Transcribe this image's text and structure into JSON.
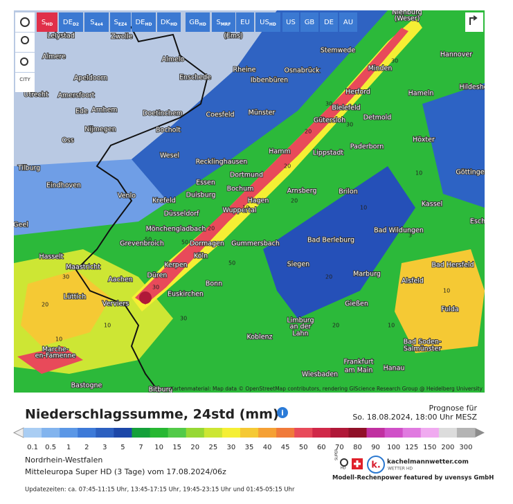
{
  "toolbar": {
    "buttons": [
      {
        "main": "S",
        "sub": "HD"
      },
      {
        "main": "DE",
        "sub": "D2"
      },
      {
        "main": "S",
        "sub": "4x4"
      },
      {
        "main": "S",
        "sub": "EZ4"
      },
      {
        "main": "DE",
        "sub": "HD"
      },
      {
        "main": "DK",
        "sub": "HD"
      },
      {
        "main": "GB",
        "sub": "HD"
      },
      {
        "main": "S",
        "sub": "MRF"
      },
      {
        "main": "EU"
      },
      {
        "main": "US",
        "sub": "HD"
      },
      {
        "main": "US"
      },
      {
        "main": "GB"
      },
      {
        "main": "DE"
      },
      {
        "main": "AU"
      }
    ],
    "city_button": "CITY"
  },
  "map": {
    "cities": [
      "Lelystad",
      "Zwolle",
      "(Ems)",
      "Nienburg",
      "(Weser)",
      "Stemwede",
      "Hannover",
      "Almere",
      "Almelo",
      "Rheine",
      "Osnabrück",
      "Minden",
      "Apeldoorn",
      "Enschede",
      "Ibbenbüren",
      "Hildesheim",
      "Amersfoort",
      "Herford",
      "Hameln",
      "Utrecht",
      "Arnhem",
      "Doetinchem",
      "Coesfeld",
      "Münster",
      "Bielefeld",
      "Ede",
      "Gütersloh",
      "Detmold",
      "Nijmegen",
      "Bocholt",
      "Oss",
      "Höxter",
      "Hamm",
      "Lippstadt",
      "Paderborn",
      "Wesel",
      "Recklinghausen",
      "Tilburg",
      "Dortmund",
      "Göttingen",
      "Essen",
      "Bochum",
      "Eindhoven",
      "Brilon",
      "Arnsberg",
      "Venlo",
      "Duisburg",
      "Hagen",
      "Krefeld",
      "Kassel",
      "Wuppertal",
      "Düsseldorf",
      "Geel",
      "Mönchengladbach",
      "Bad Wildungen",
      "Esch",
      "Bad Berleburg",
      "Grevenbroich",
      "Dormagen",
      "Gummersbach",
      "Köln",
      "Hasselt",
      "Siegen",
      "Maastricht",
      "Kerpen",
      "Bad Hersfeld",
      "Düren",
      "Marburg",
      "Aachen",
      "Bonn",
      "Alsfeld",
      "Lüttich",
      "Euskirchen",
      "Verviers",
      "Gießen",
      "Fulda",
      "Limburg",
      "an der",
      "Lahn",
      "Koblenz",
      "Bad Soden-",
      "Salmünster",
      "Marche-",
      "en-Famenne",
      "Frankfurt",
      "am Main",
      "Hanau",
      "Wiesbaden",
      "Bastogne",
      "Bitburg"
    ],
    "values": [
      "30",
      "50",
      "20",
      "10",
      "20",
      "30",
      "10",
      "20",
      "50",
      "10",
      "30",
      "20",
      "10",
      "3",
      "10",
      "20",
      "30",
      "50",
      "20",
      "10",
      "30",
      "20",
      "10",
      "30"
    ],
    "attribution": "Kartenmaterial: Map data © OpenStreetMap contributors, rendering GIScience Research Group @ Heidelberg University"
  },
  "header": {
    "title": "Niederschlagssumme, 24std (mm)",
    "forecast_label": "Prognose für",
    "forecast_time": "So. 18.08.2024, 18:00 Uhr MESZ"
  },
  "legend": {
    "items": [
      {
        "label": "0.1",
        "color": "#a9cdf3"
      },
      {
        "label": "0.5",
        "color": "#82b4ee"
      },
      {
        "label": "1",
        "color": "#5b97e6"
      },
      {
        "label": "2",
        "color": "#3d7ad8"
      },
      {
        "label": "3",
        "color": "#2c60c0"
      },
      {
        "label": "5",
        "color": "#1c47a8"
      },
      {
        "label": "7",
        "color": "#14a03a"
      },
      {
        "label": "10",
        "color": "#27b832"
      },
      {
        "label": "15",
        "color": "#52ca48"
      },
      {
        "label": "20",
        "color": "#96d834"
      },
      {
        "label": "25",
        "color": "#cce633"
      },
      {
        "label": "30",
        "color": "#f5ef34"
      },
      {
        "label": "35",
        "color": "#f5c934"
      },
      {
        "label": "40",
        "color": "#f5a034"
      },
      {
        "label": "45",
        "color": "#f07a3a"
      },
      {
        "label": "50",
        "color": "#e84a5a"
      },
      {
        "label": "60",
        "color": "#d02848"
      },
      {
        "label": "70",
        "color": "#b01838"
      },
      {
        "label": "80",
        "color": "#901028"
      },
      {
        "label": "90",
        "color": "#c030a0"
      },
      {
        "label": "100",
        "color": "#d050c8"
      },
      {
        "label": "125",
        "color": "#e07ae0"
      },
      {
        "label": "150",
        "color": "#f0aaf0"
      },
      {
        "label": "200",
        "color": "#dcdcdc"
      },
      {
        "label": "300",
        "color": "#b4b4b4"
      }
    ]
  },
  "footer": {
    "region": "Nordrhein-Westfalen",
    "model": "Mitteleuropa Super HD (3 Tage) vom 17.08.2024/06z",
    "updates": "Updatezeiten: ca. 07:45-11:15 Uhr, 13:45-17:15 Uhr, 19:45-23:15 Uhr und 01:45-05:15 Uhr",
    "logo_super": "SUPER",
    "logo_hd": "HD",
    "logo_k": "k.",
    "logo_site": "kachelmannwetter.com",
    "logo_wetter": "WETTER HD",
    "credit": "Modell-Rechenpower featured by uvensys GmbH"
  }
}
